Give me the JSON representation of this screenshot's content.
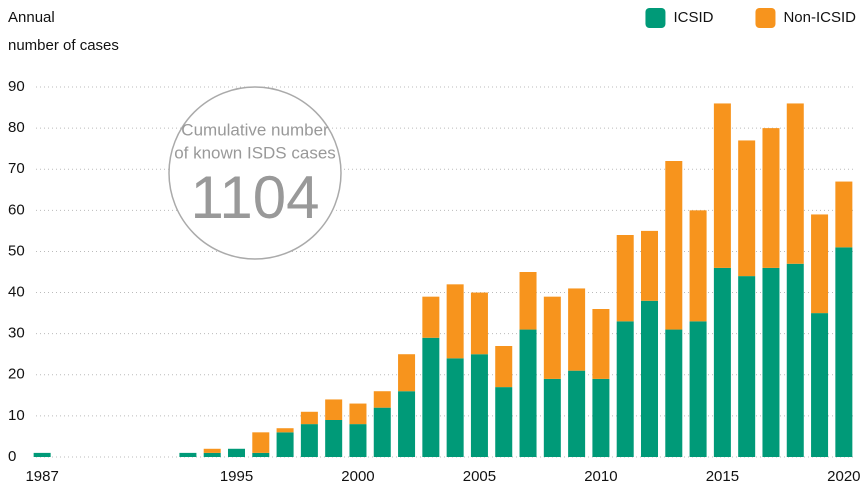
{
  "chart_data": {
    "type": "stacked_bar",
    "y_label": [
      "Annual",
      "number of cases"
    ],
    "annotation": {
      "lines": [
        "Cumulative number",
        "of known ISDS cases"
      ],
      "total": "1104"
    },
    "categories": [
      "1987",
      null,
      null,
      null,
      null,
      null,
      null,
      null,
      "1995",
      null,
      null,
      null,
      null,
      "2000",
      null,
      null,
      null,
      null,
      "2005",
      null,
      null,
      null,
      null,
      "2010",
      null,
      null,
      null,
      null,
      "2015",
      null,
      null,
      null,
      null,
      "2020"
    ],
    "series": [
      {
        "name": "ICSID",
        "color": "#009a78",
        "values": [
          1,
          0,
          0,
          0,
          0,
          0,
          1,
          1,
          2,
          1,
          6,
          8,
          9,
          8,
          12,
          16,
          29,
          24,
          25,
          17,
          31,
          19,
          21,
          19,
          33,
          38,
          31,
          33,
          46,
          44,
          46,
          47,
          35,
          51
        ]
      },
      {
        "name": "Non-ICSID",
        "color": "#f7941d",
        "values": [
          0,
          0,
          0,
          0,
          0,
          0,
          0,
          1,
          0,
          5,
          1,
          3,
          5,
          5,
          4,
          9,
          10,
          18,
          15,
          10,
          14,
          20,
          20,
          17,
          21,
          17,
          41,
          27,
          40,
          33,
          34,
          39,
          24,
          16
        ]
      }
    ],
    "ylim": [
      0,
      90
    ],
    "yticks": [
      0,
      10,
      20,
      30,
      40,
      50,
      60,
      70,
      80,
      90
    ],
    "grid": true,
    "legend": "top-right"
  }
}
